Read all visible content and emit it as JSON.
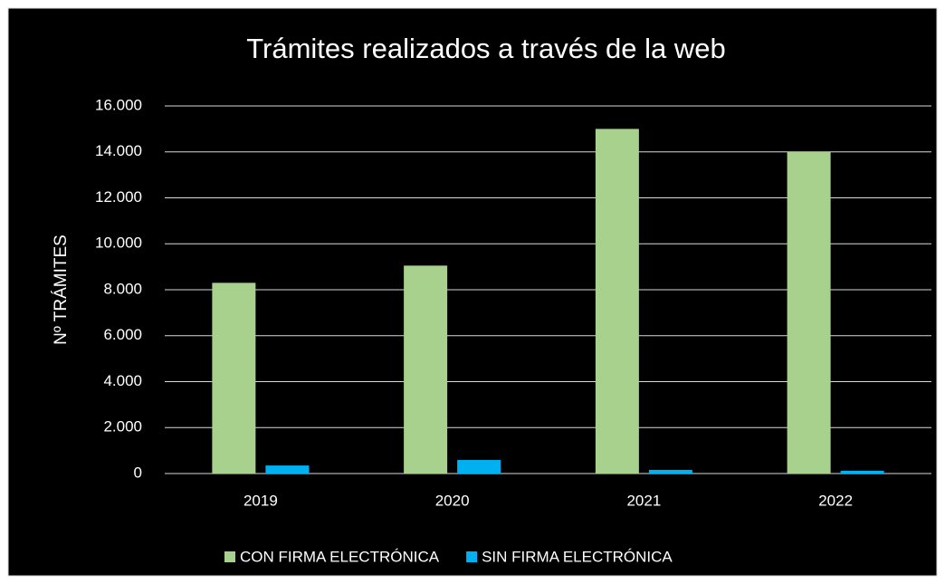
{
  "chart_data": {
    "type": "bar",
    "title": "Trámites realizados a través de la web",
    "y_label": "Nº TRÁMITES",
    "categories": [
      "2019",
      "2020",
      "2021",
      "2022"
    ],
    "series": [
      {
        "name": "CON FIRMA ELECTRÓNICA",
        "color": "#a9d18e",
        "values": [
          8300,
          9050,
          15000,
          14000
        ]
      },
      {
        "name": "SIN FIRMA ELECTRÓNICA",
        "color": "#00b0f0",
        "values": [
          350,
          590,
          160,
          120
        ]
      }
    ],
    "ylim": [
      0,
      16000
    ],
    "yticks": [
      0,
      {
        "value": 2000,
        "label": "2.000"
      },
      {
        "value": 4000,
        "label": "4.000"
      },
      {
        "value": 6000,
        "label": "6.000"
      },
      {
        "value": 8000,
        "label": "8.000"
      },
      {
        "value": 10000,
        "label": "10.000"
      },
      {
        "value": 12000,
        "label": "12.000"
      },
      {
        "value": 14000,
        "label": "14.000"
      },
      {
        "value": 16000,
        "label": "16.000"
      }
    ],
    "grid": true,
    "legend": "bottom"
  }
}
